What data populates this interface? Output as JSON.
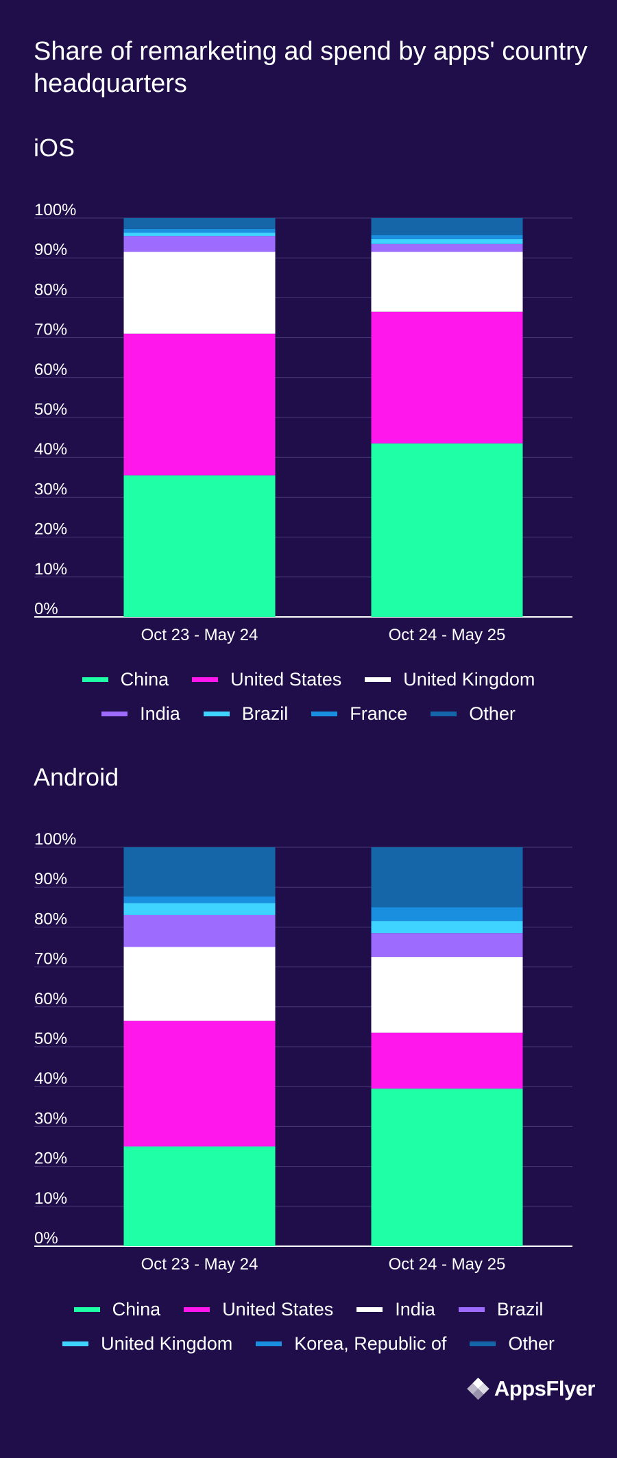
{
  "title": "Share of remarketing ad spend by apps' country headquarters",
  "brand": {
    "name": "AppsFlyer",
    "icon": "appsflyer-logo-icon"
  },
  "chart_data": [
    {
      "type": "bar",
      "stacked": true,
      "title": "iOS",
      "categories": [
        "Oct 23 - May 24",
        "Oct 24 - May 25"
      ],
      "yticks": [
        "0%",
        "10%",
        "20%",
        "30%",
        "40%",
        "50%",
        "60%",
        "70%",
        "80%",
        "90%",
        "100%"
      ],
      "ylim": [
        0,
        100
      ],
      "grid": true,
      "legend_position": "bottom",
      "legend_rows": [
        [
          "China",
          "United States",
          "United Kingdom"
        ],
        [
          "India",
          "Brazil",
          "France",
          "Other"
        ]
      ],
      "series": [
        {
          "name": "China",
          "color": "#1fffa6",
          "values": [
            35.5,
            43.5
          ]
        },
        {
          "name": "United States",
          "color": "#ff17ec",
          "values": [
            35.5,
            33.0
          ]
        },
        {
          "name": "United Kingdom",
          "color": "#ffffff",
          "values": [
            20.5,
            15.0
          ]
        },
        {
          "name": "India",
          "color": "#9d6cff",
          "values": [
            4.0,
            2.0
          ]
        },
        {
          "name": "Brazil",
          "color": "#3fd4ff",
          "values": [
            0.8,
            1.2
          ]
        },
        {
          "name": "France",
          "color": "#1a8fe0",
          "values": [
            1.0,
            1.0
          ]
        },
        {
          "name": "Other",
          "color": "#1566a8",
          "values": [
            2.7,
            4.3
          ]
        }
      ]
    },
    {
      "type": "bar",
      "stacked": true,
      "title": "Android",
      "categories": [
        "Oct 23 - May 24",
        "Oct 24 - May 25"
      ],
      "yticks": [
        "0%",
        "10%",
        "20%",
        "30%",
        "40%",
        "50%",
        "60%",
        "70%",
        "80%",
        "90%",
        "100%"
      ],
      "ylim": [
        0,
        100
      ],
      "grid": true,
      "legend_position": "bottom",
      "legend_rows": [
        [
          "China",
          "United States",
          "India",
          "Brazil"
        ],
        [
          "United Kingdom",
          "Korea, Republic of",
          "Other"
        ]
      ],
      "series": [
        {
          "name": "China",
          "color": "#1fffa6",
          "values": [
            25.0,
            39.5
          ]
        },
        {
          "name": "United States",
          "color": "#ff17ec",
          "values": [
            31.5,
            14.0
          ]
        },
        {
          "name": "India",
          "color": "#ffffff",
          "values": [
            18.5,
            19.0
          ]
        },
        {
          "name": "Brazil",
          "color": "#9d6cff",
          "values": [
            8.0,
            6.0
          ]
        },
        {
          "name": "United Kingdom",
          "color": "#3fd4ff",
          "values": [
            3.0,
            3.0
          ]
        },
        {
          "name": "Korea, Republic of",
          "color": "#1a8fe0",
          "values": [
            1.7,
            3.5
          ]
        },
        {
          "name": "Other",
          "color": "#1566a8",
          "values": [
            12.3,
            15.0
          ]
        }
      ]
    }
  ]
}
